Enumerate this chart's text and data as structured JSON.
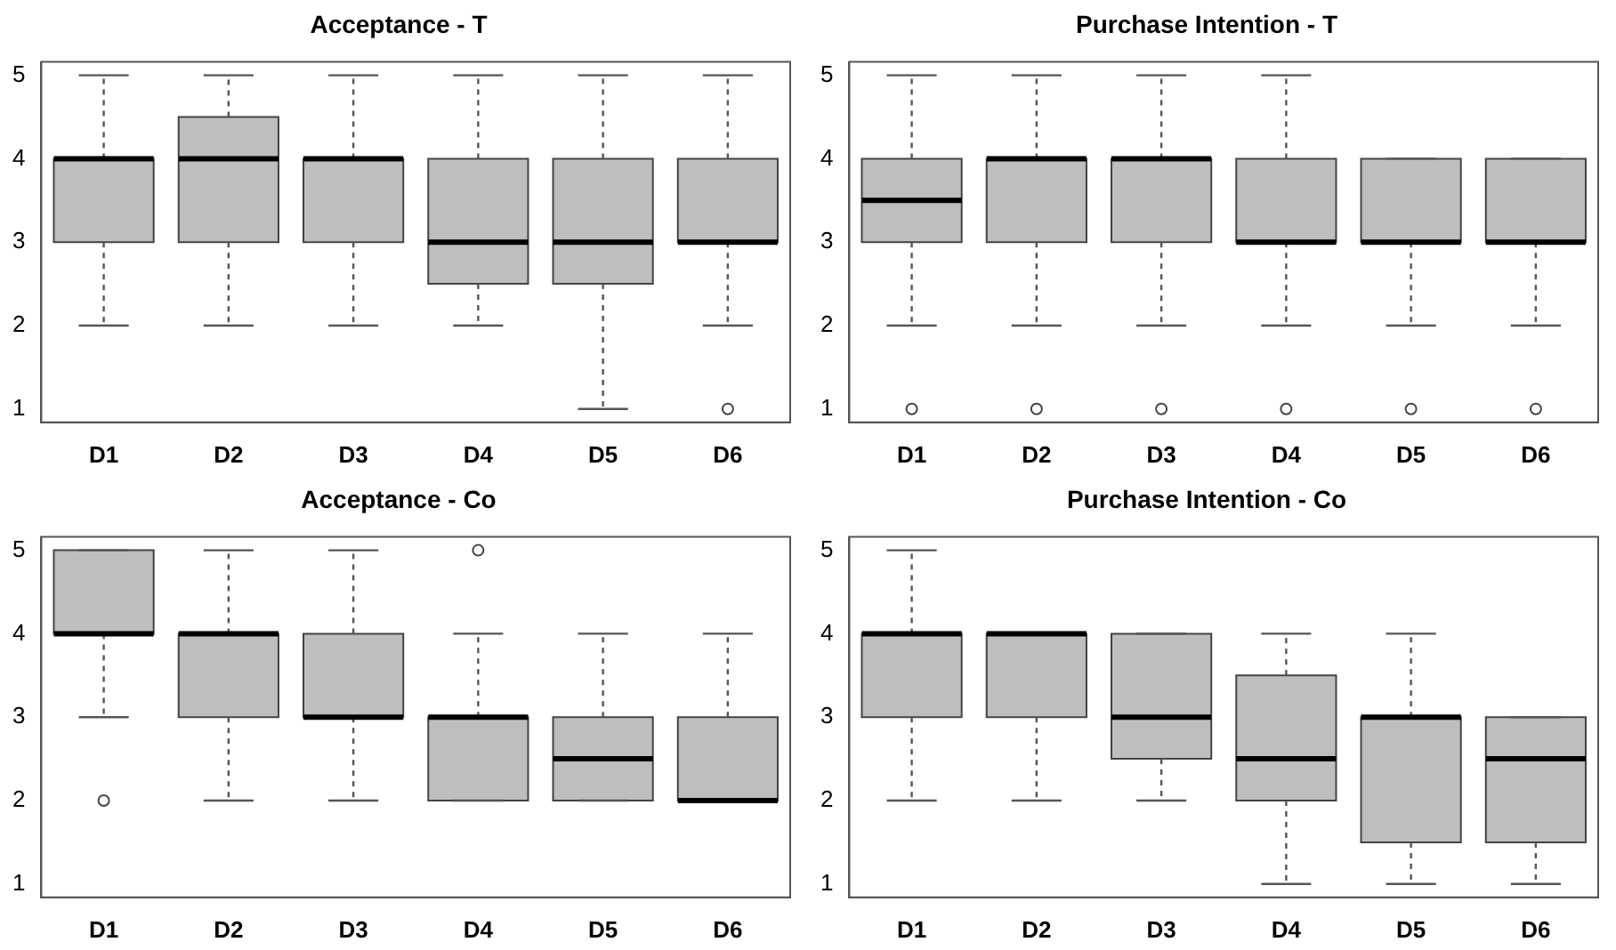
{
  "chart_data": [
    {
      "type": "box",
      "title": "Acceptance - T",
      "categories": [
        "D1",
        "D2",
        "D3",
        "D4",
        "D5",
        "D6"
      ],
      "color": "#bebebe",
      "ylim": [
        0.84,
        5.16
      ],
      "yticks": [
        1,
        2,
        3,
        4,
        5
      ],
      "boxes": [
        {
          "low": 2,
          "q1": 3,
          "median": 4,
          "q3": 4,
          "high": 5
        },
        {
          "low": 2,
          "q1": 3,
          "median": 4,
          "q3": 4.5,
          "high": 5
        },
        {
          "low": 2,
          "q1": 3,
          "median": 4,
          "q3": 4,
          "high": 5
        },
        {
          "low": 2,
          "q1": 2.5,
          "median": 3,
          "q3": 4,
          "high": 5
        },
        {
          "low": 1,
          "q1": 2.5,
          "median": 3,
          "q3": 4,
          "high": 5
        },
        {
          "low": 2,
          "q1": 3,
          "median": 3,
          "q3": 4,
          "high": 5,
          "outliers": [
            1
          ]
        }
      ]
    },
    {
      "type": "box",
      "title": "Purchase Intention - T",
      "categories": [
        "D1",
        "D2",
        "D3",
        "D4",
        "D5",
        "D6"
      ],
      "color": "#bebebe",
      "ylim": [
        0.84,
        5.16
      ],
      "yticks": [
        1,
        2,
        3,
        4,
        5
      ],
      "boxes": [
        {
          "low": 2,
          "q1": 3,
          "median": 3.5,
          "q3": 4,
          "high": 5,
          "outliers": [
            1
          ]
        },
        {
          "low": 2,
          "q1": 3,
          "median": 4,
          "q3": 4,
          "high": 5,
          "outliers": [
            1
          ]
        },
        {
          "low": 2,
          "q1": 3,
          "median": 4,
          "q3": 4,
          "high": 5,
          "outliers": [
            1
          ]
        },
        {
          "low": 2,
          "q1": 3,
          "median": 3,
          "q3": 4,
          "high": 5,
          "outliers": [
            1
          ]
        },
        {
          "low": 2,
          "q1": 3,
          "median": 3,
          "q3": 4,
          "high": 4,
          "outliers": [
            1
          ]
        },
        {
          "low": 2,
          "q1": 3,
          "median": 3,
          "q3": 4,
          "high": 4,
          "outliers": [
            1
          ]
        }
      ]
    },
    {
      "type": "box",
      "title": "Acceptance - Co",
      "categories": [
        "D1",
        "D2",
        "D3",
        "D4",
        "D5",
        "D6"
      ],
      "color": "#bebebe",
      "ylim": [
        0.84,
        5.16
      ],
      "yticks": [
        1,
        2,
        3,
        4,
        5
      ],
      "boxes": [
        {
          "low": 3,
          "q1": 4,
          "median": 4,
          "q3": 5,
          "high": 5,
          "outliers": [
            2
          ]
        },
        {
          "low": 2,
          "q1": 3,
          "median": 4,
          "q3": 4,
          "high": 5
        },
        {
          "low": 2,
          "q1": 3,
          "median": 3,
          "q3": 4,
          "high": 5
        },
        {
          "low": 2,
          "q1": 2,
          "median": 3,
          "q3": 3,
          "high": 4,
          "outliers": [
            5
          ]
        },
        {
          "low": 2,
          "q1": 2,
          "median": 2.5,
          "q3": 3,
          "high": 4
        },
        {
          "low": 2,
          "q1": 2,
          "median": 2,
          "q3": 3,
          "high": 4
        }
      ]
    },
    {
      "type": "box",
      "title": "Purchase Intention - Co",
      "categories": [
        "D1",
        "D2",
        "D3",
        "D4",
        "D5",
        "D6"
      ],
      "color": "#bebebe",
      "ylim": [
        0.84,
        5.16
      ],
      "yticks": [
        1,
        2,
        3,
        4,
        5
      ],
      "boxes": [
        {
          "low": 2,
          "q1": 3,
          "median": 4,
          "q3": 4,
          "high": 5
        },
        {
          "low": 2,
          "q1": 3,
          "median": 4,
          "q3": 4,
          "high": 4
        },
        {
          "low": 2,
          "q1": 2.5,
          "median": 3,
          "q3": 4,
          "high": 4
        },
        {
          "low": 1,
          "q1": 2,
          "median": 2.5,
          "q3": 3.5,
          "high": 4
        },
        {
          "low": 1,
          "q1": 1.5,
          "median": 3,
          "q3": 3,
          "high": 4
        },
        {
          "low": 1,
          "q1": 1.5,
          "median": 2.5,
          "q3": 3,
          "high": 3
        }
      ]
    }
  ]
}
